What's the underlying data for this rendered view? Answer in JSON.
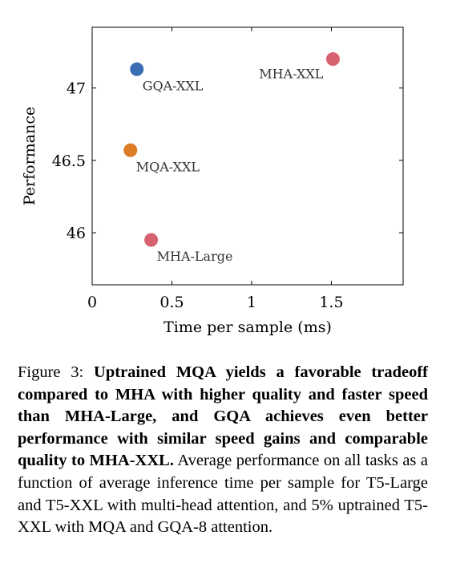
{
  "chart_data": {
    "type": "scatter",
    "xlabel": "Time per sample (ms)",
    "ylabel": "Performance",
    "xlim": [
      0,
      1.95
    ],
    "ylim": [
      45.64,
      47.42
    ],
    "xticks": [
      0,
      0.5,
      1,
      1.5
    ],
    "xtick_labels": [
      "0",
      "0.5",
      "1",
      "1.5"
    ],
    "yticks": [
      46,
      46.5,
      47
    ],
    "ytick_labels": [
      "46",
      "46.5",
      "47"
    ],
    "grid": false,
    "points": [
      {
        "label": "GQA-XXL",
        "x": 0.28,
        "y": 47.13,
        "color": "#3b6db4",
        "label_pos": "below-right"
      },
      {
        "label": "MHA-XXL",
        "x": 1.51,
        "y": 47.2,
        "color": "#d6626f",
        "label_pos": "below-left"
      },
      {
        "label": "MQA-XXL",
        "x": 0.24,
        "y": 46.57,
        "color": "#dc7c25",
        "label_pos": "below-right"
      },
      {
        "label": "MHA-Large",
        "x": 0.37,
        "y": 45.95,
        "color": "#d6626f",
        "label_pos": "below-right"
      }
    ]
  },
  "caption": {
    "prefix": "Figure 3: ",
    "bold": "Uptrained MQA yields a favorable tradeoff compared to MHA with higher quality and faster speed than MHA-Large, and GQA achieves even better performance with similar speed gains and comparable quality to MHA-XXL.",
    "rest": " Average performance on all tasks as a function of average inference time per sample for T5-Large and T5-XXL with multi-head attention, and 5% uptrained T5-XXL with MQA and GQA-8 attention."
  }
}
